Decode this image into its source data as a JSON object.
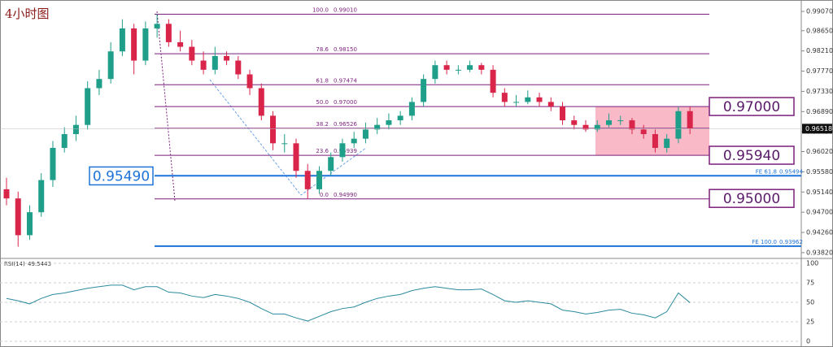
{
  "chart_data": [
    {
      "type": "candlestick",
      "title": "4小时图",
      "open": [
        0.952,
        0.95,
        0.942,
        0.947,
        0.954,
        0.961,
        0.964,
        0.966,
        0.974,
        0.976,
        0.982,
        0.987,
        0.98,
        0.987,
        0.988,
        0.984,
        0.983,
        0.98,
        0.978,
        0.981,
        0.98,
        0.977,
        0.974,
        0.968,
        0.962,
        0.962,
        0.956,
        0.952,
        0.956,
        0.959,
        0.962,
        0.963,
        0.965,
        0.966,
        0.967,
        0.968,
        0.971,
        0.976,
        0.979,
        0.978,
        0.978,
        0.979,
        0.978,
        0.973,
        0.971,
        0.971,
        0.972,
        0.971,
        0.97,
        0.967,
        0.966,
        0.965,
        0.966,
        0.967,
        0.967,
        0.965,
        0.964,
        0.961,
        0.963,
        0.969
      ],
      "high": [
        0.9545,
        0.9515,
        0.9485,
        0.9555,
        0.9625,
        0.9655,
        0.968,
        0.9755,
        0.978,
        0.984,
        0.989,
        0.988,
        0.9885,
        0.9901,
        0.989,
        0.9865,
        0.9845,
        0.982,
        0.983,
        0.982,
        0.981,
        0.978,
        0.975,
        0.969,
        0.964,
        0.963,
        0.9575,
        0.957,
        0.96,
        0.963,
        0.9645,
        0.9665,
        0.9675,
        0.9685,
        0.969,
        0.972,
        0.977,
        0.98,
        0.98,
        0.979,
        0.98,
        0.9795,
        0.979,
        0.974,
        0.9725,
        0.9735,
        0.973,
        0.972,
        0.971,
        0.968,
        0.967,
        0.967,
        0.9685,
        0.968,
        0.9675,
        0.966,
        0.965,
        0.964,
        0.97,
        0.97
      ],
      "low": [
        0.9485,
        0.9395,
        0.941,
        0.946,
        0.9525,
        0.96,
        0.9625,
        0.965,
        0.9725,
        0.975,
        0.981,
        0.977,
        0.979,
        0.985,
        0.983,
        0.982,
        0.979,
        0.977,
        0.977,
        0.979,
        0.976,
        0.9725,
        0.967,
        0.9605,
        0.96,
        0.9545,
        0.9499,
        0.951,
        0.955,
        0.958,
        0.961,
        0.962,
        0.964,
        0.965,
        0.966,
        0.967,
        0.97,
        0.975,
        0.977,
        0.977,
        0.9775,
        0.977,
        0.972,
        0.97,
        0.97,
        0.9705,
        0.97,
        0.969,
        0.966,
        0.965,
        0.9645,
        0.9645,
        0.9655,
        0.966,
        0.964,
        0.963,
        0.96,
        0.96,
        0.962,
        0.964
      ],
      "close": [
        0.95,
        0.942,
        0.947,
        0.954,
        0.961,
        0.964,
        0.966,
        0.974,
        0.976,
        0.982,
        0.987,
        0.98,
        0.987,
        0.988,
        0.984,
        0.983,
        0.98,
        0.978,
        0.981,
        0.98,
        0.977,
        0.974,
        0.968,
        0.962,
        0.962,
        0.956,
        0.952,
        0.956,
        0.959,
        0.962,
        0.963,
        0.965,
        0.966,
        0.967,
        0.968,
        0.971,
        0.976,
        0.979,
        0.978,
        0.978,
        0.979,
        0.978,
        0.973,
        0.971,
        0.971,
        0.972,
        0.971,
        0.97,
        0.967,
        0.966,
        0.965,
        0.966,
        0.967,
        0.967,
        0.965,
        0.964,
        0.961,
        0.963,
        0.969,
        0.96518
      ],
      "up_color": "#1f9e89",
      "down_color": "#d9254a",
      "ylim": [
        0.9373,
        0.9923
      ],
      "yticks": [
        {
          "value": 0.9907,
          "label": "0.99070"
        },
        {
          "value": 0.9865,
          "label": "0.98650"
        },
        {
          "value": 0.9821,
          "label": "0.98210"
        },
        {
          "value": 0.9777,
          "label": "0.97770"
        },
        {
          "value": 0.9733,
          "label": "0.97330"
        },
        {
          "value": 0.9689,
          "label": "0.96890"
        },
        {
          "value": 0.9645,
          "label": "0.96450"
        },
        {
          "value": 0.9602,
          "label": "0.96020"
        },
        {
          "value": 0.9558,
          "label": "0.95580"
        },
        {
          "value": 0.9514,
          "label": "0.95140"
        },
        {
          "value": 0.947,
          "label": "0.94700"
        },
        {
          "value": 0.9426,
          "label": "0.94260"
        },
        {
          "value": 0.9382,
          "label": "0.93820"
        }
      ],
      "last_price": {
        "value": 0.96518,
        "label": "0.96518"
      },
      "fib_levels": [
        {
          "ratio": {
            "value": 100,
            "label": "100.0"
          },
          "price": {
            "value": 0.9901,
            "label": "0.99010"
          }
        },
        {
          "ratio": 78.6,
          "price": {
            "value": 0.9815,
            "label": "0.98150"
          }
        },
        {
          "ratio": 61.8,
          "price": 0.97474
        },
        {
          "ratio": {
            "value": 50,
            "label": "50.0"
          },
          "price": {
            "value": 0.97,
            "label": "0.97000"
          }
        },
        {
          "ratio": 38.2,
          "price": 0.96526
        },
        {
          "ratio": 23.6,
          "price": 0.95939
        },
        {
          "ratio": {
            "value": 0,
            "label": "0.0"
          },
          "price": {
            "value": 0.9499,
            "label": "0.94990"
          }
        }
      ],
      "fe_levels": [
        {
          "name": "FE 61.8",
          "price": 0.95494
        },
        {
          "name": "FE 100.0",
          "price": 0.93962
        }
      ],
      "annotations": [
        {
          "value": 0.97,
          "label": "0.97000"
        },
        {
          "value": 0.9594,
          "label": "0.95940"
        },
        {
          "value": 0.9549,
          "label": "0.95490"
        },
        {
          "value": 0.95,
          "label": "0.95000"
        }
      ]
    },
    {
      "type": "line",
      "title": "RSI(14)",
      "series": [
        {
          "color": "#2a8a9e",
          "values": [
            55,
            52,
            48,
            55,
            60,
            62,
            65,
            68,
            70,
            72,
            72,
            66,
            70,
            70,
            63,
            62,
            58,
            56,
            60,
            58,
            55,
            50,
            42,
            35,
            35,
            30,
            26,
            32,
            38,
            42,
            44,
            50,
            55,
            58,
            60,
            65,
            68,
            70,
            68,
            66,
            66,
            67,
            60,
            52,
            50,
            52,
            50,
            48,
            40,
            38,
            35,
            37,
            40,
            41,
            36,
            34,
            30,
            38,
            62,
            49.5443
          ]
        }
      ],
      "ylim": [
        0,
        100
      ],
      "yticks": [
        100,
        75,
        50,
        25,
        0
      ]
    }
  ]
}
